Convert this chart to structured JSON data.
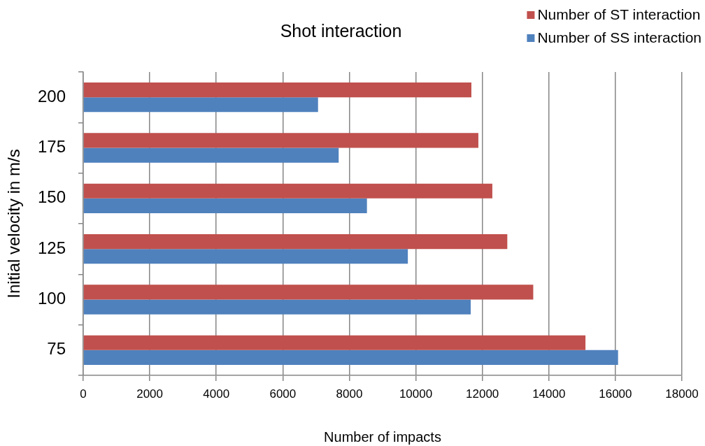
{
  "chart_data": {
    "type": "bar",
    "orientation": "horizontal",
    "title": "Shot interaction",
    "xlabel": "Number of impacts",
    "ylabel": "Initial velocity in m/s",
    "categories": [
      "200",
      "175",
      "150",
      "125",
      "100",
      "75"
    ],
    "series": [
      {
        "name": "Number of ST interaction",
        "color": "#c0504d",
        "values": [
          11670,
          11880,
          12300,
          12750,
          13530,
          15100
        ]
      },
      {
        "name": "Number of SS interaction",
        "color": "#4f81bd",
        "values": [
          7060,
          7680,
          8530,
          9760,
          11650,
          16080
        ]
      }
    ],
    "xlim": [
      0,
      18000
    ],
    "xticks": [
      0,
      2000,
      4000,
      6000,
      8000,
      10000,
      12000,
      14000,
      16000,
      18000
    ],
    "grid": "x",
    "legend": "top right"
  }
}
